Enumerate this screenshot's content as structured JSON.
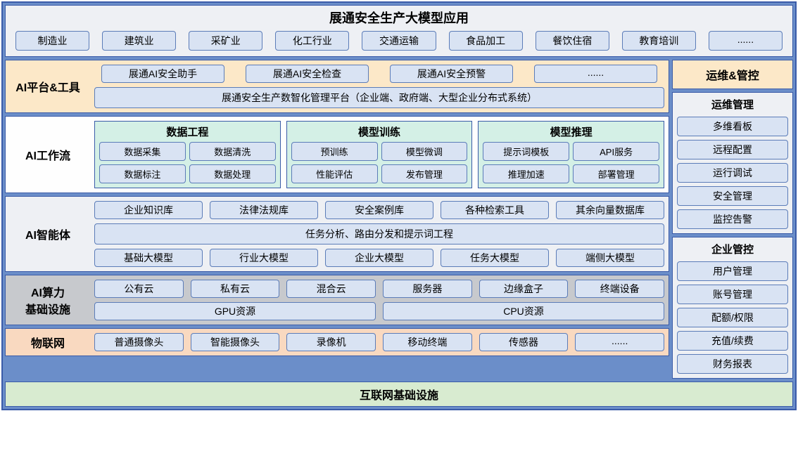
{
  "colors": {
    "frame_border": "#3a5ba8",
    "frame_bg": "#6b8ec9",
    "pill_bg": "#d9e3f3",
    "pill_border": "#5b7cb8",
    "cream": "#fce8c8",
    "white": "#fefefe",
    "ltgray": "#eef0f4",
    "gray": "#c7c9cd",
    "peach": "#f9d9c0",
    "mint": "#d4f0e6",
    "green_footer": "#d8ebd0"
  },
  "top": {
    "title": "展通安全生产大模型应用",
    "industries": [
      "制造业",
      "建筑业",
      "采矿业",
      "化工行业",
      "交通运输",
      "食品加工",
      "餐饮住宿",
      "教育培训",
      "......"
    ]
  },
  "platform": {
    "label": "AI平台&工具",
    "row1": [
      "展通AI安全助手",
      "展通AI安全检查",
      "展通AI安全预警",
      "......"
    ],
    "row2": "展通安全生产数智化管理平台（企业端、政府端、大型企业分布式系统）"
  },
  "workflow": {
    "label": "AI工作流",
    "cards": [
      {
        "title": "数据工程",
        "items": [
          "数据采集",
          "数据清洗",
          "数据标注",
          "数据处理"
        ]
      },
      {
        "title": "模型训练",
        "items": [
          "预训练",
          "模型微调",
          "性能评估",
          "发布管理"
        ]
      },
      {
        "title": "模型推理",
        "items": [
          "提示词模板",
          "API服务",
          "推理加速",
          "部署管理"
        ]
      }
    ]
  },
  "agent": {
    "label": "AI智能体",
    "row1": [
      "企业知识库",
      "法律法规库",
      "安全案例库",
      "各种检索工具",
      "其余向量数据库"
    ],
    "row2": "任务分析、路由分发和提示词工程",
    "row3": [
      "基础大模型",
      "行业大模型",
      "企业大模型",
      "任务大模型",
      "端侧大模型"
    ]
  },
  "compute": {
    "label": "AI算力\n基础设施",
    "row1": [
      "公有云",
      "私有云",
      "混合云",
      "服务器",
      "边缘盒子",
      "终端设备"
    ],
    "row2": [
      "GPU资源",
      "CPU资源"
    ]
  },
  "iot": {
    "label": "物联网",
    "items": [
      "普通摄像头",
      "智能摄像头",
      "录像机",
      "移动终端",
      "传感器",
      "......"
    ]
  },
  "footer": "互联网基础设施",
  "ops": {
    "header": "运维&管控",
    "card1": {
      "title": "运维管理",
      "items": [
        "多维看板",
        "远程配置",
        "运行调试",
        "安全管理",
        "监控告警"
      ]
    },
    "card2": {
      "title": "企业管控",
      "items": [
        "用户管理",
        "账号管理",
        "配额/权限",
        "充值/续费",
        "财务报表"
      ]
    }
  }
}
